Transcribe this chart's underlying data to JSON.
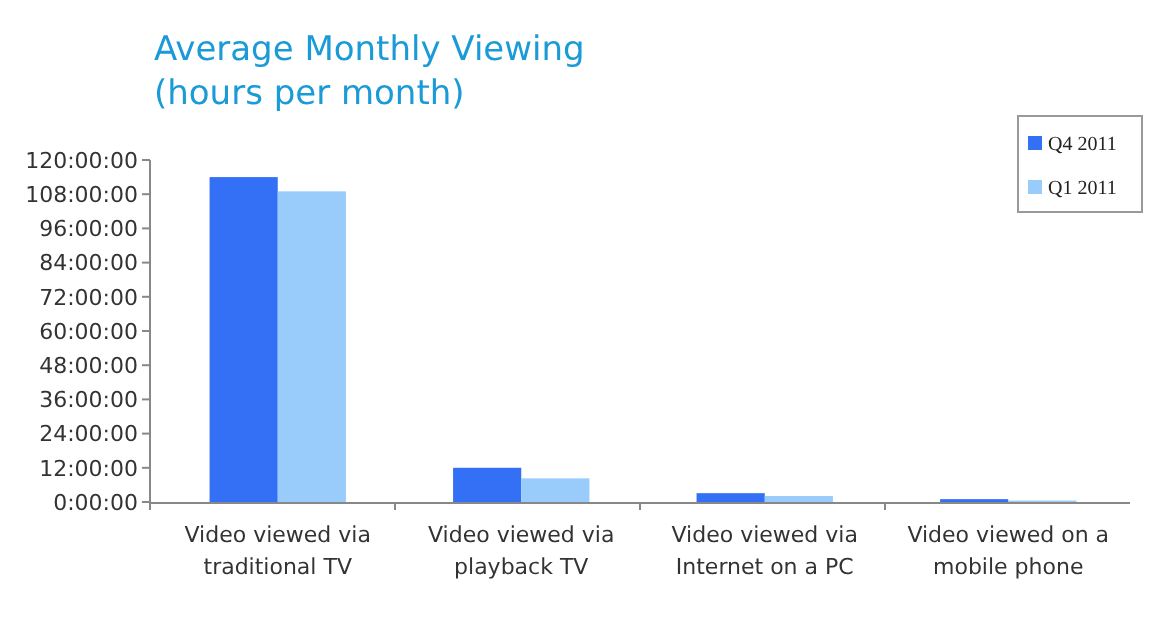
{
  "chart_data": {
    "type": "bar",
    "title": "Average Monthly Viewing",
    "subtitle": "(hours per month)",
    "categories": [
      "Video viewed via traditional TV",
      "Video viewed via playback TV",
      "Video viewed via Internet on a PC",
      "Video viewed on a mobile phone"
    ],
    "series": [
      {
        "name": "Q4 2011",
        "color": "#3370f5",
        "values": [
          114,
          12,
          3.1,
          1
        ]
      },
      {
        "name": "Q1 2011",
        "color": "#99ccfa",
        "values": [
          109,
          8.3,
          2.1,
          0.5
        ]
      }
    ],
    "ylim": [
      0,
      120
    ],
    "yticks": [
      {
        "value": 0,
        "label": "0:00:00"
      },
      {
        "value": 12,
        "label": "12:00:00"
      },
      {
        "value": 24,
        "label": "24:00:00"
      },
      {
        "value": 36,
        "label": "36:00:00"
      },
      {
        "value": 48,
        "label": "48:00:00"
      },
      {
        "value": 60,
        "label": "60:00:00"
      },
      {
        "value": 72,
        "label": "72:00:00"
      },
      {
        "value": 84,
        "label": "84:00:00"
      },
      {
        "value": 96,
        "label": "96:00:00"
      },
      {
        "value": 108,
        "label": "108:00:00"
      },
      {
        "value": 120,
        "label": "120:00:00"
      }
    ],
    "legend": "top right",
    "grid": false
  }
}
